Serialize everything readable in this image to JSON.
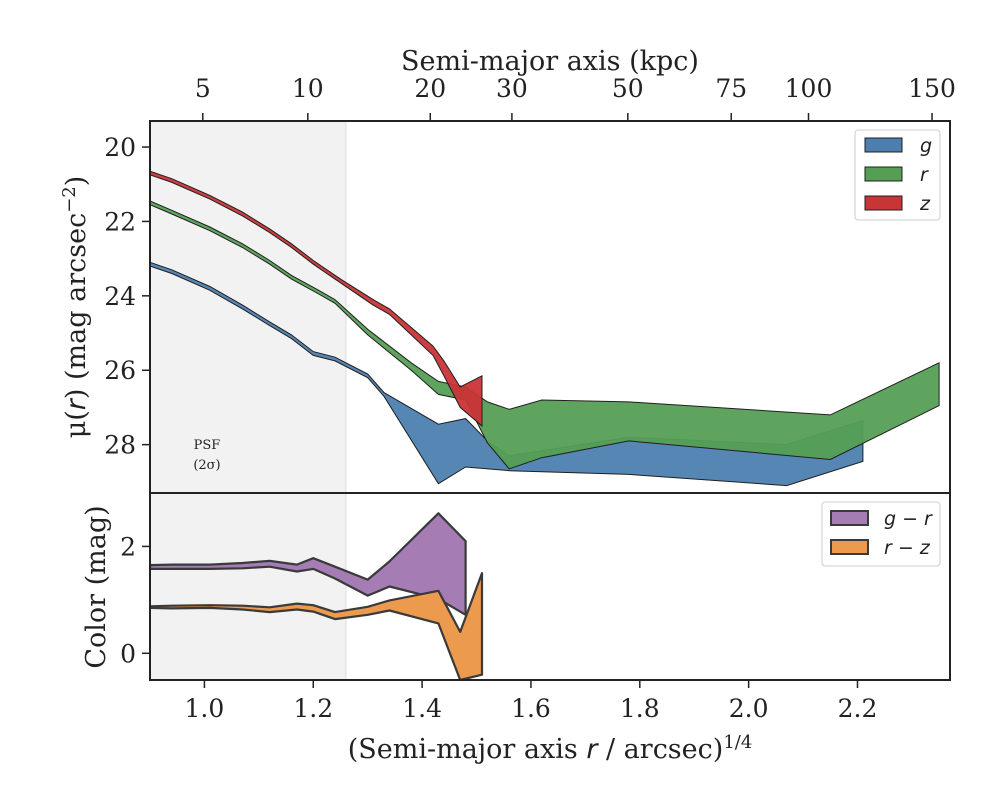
{
  "chart_data": [
    {
      "panel": "surface-brightness",
      "type": "area",
      "ylabel_parts": [
        "μ(",
        "r",
        ") (mag arcsec",
        "−2",
        ")"
      ],
      "top_xlabel": "Semi-major axis (kpc)",
      "top_ticks": [
        {
          "label": "5",
          "x": 0.997
        },
        {
          "label": "10",
          "x": 1.19
        },
        {
          "label": "20",
          "x": 1.415
        },
        {
          "label": "30",
          "x": 1.565
        },
        {
          "label": "50",
          "x": 1.778
        },
        {
          "label": "75",
          "x": 1.968
        },
        {
          "label": "100",
          "x": 2.11
        },
        {
          "label": "150",
          "x": 2.337
        }
      ],
      "xlim": [
        0.9,
        2.37
      ],
      "ylim": [
        29.3,
        19.3
      ],
      "y_inverted": true,
      "yticks": [
        20,
        22,
        24,
        26,
        28
      ],
      "psf_region": {
        "x_range": [
          0.9,
          1.26
        ],
        "label_line1": "PSF",
        "label_line2": "(2σ)"
      },
      "legend": {
        "position": "upper right",
        "entries": [
          "g",
          "r",
          "z"
        ]
      },
      "colors": {
        "g": "#4c7fb0",
        "r": "#559f55",
        "z": "#c93436"
      },
      "series": [
        {
          "name": "g",
          "upper": [
            [
              0.9,
              23.1
            ],
            [
              0.94,
              23.3
            ],
            [
              1.01,
              23.75
            ],
            [
              1.07,
              24.25
            ],
            [
              1.12,
              24.7
            ],
            [
              1.16,
              25.05
            ],
            [
              1.2,
              25.5
            ],
            [
              1.24,
              25.65
            ],
            [
              1.3,
              26.1
            ],
            [
              1.33,
              26.6
            ],
            [
              1.43,
              27.45
            ],
            [
              1.48,
              27.3
            ],
            [
              1.52,
              27.9
            ],
            [
              1.56,
              28.3
            ],
            [
              1.78,
              27.8
            ],
            [
              2.07,
              28.0
            ],
            [
              2.21,
              27.35
            ]
          ],
          "lower": [
            [
              0.9,
              23.2
            ],
            [
              0.94,
              23.4
            ],
            [
              1.01,
              23.85
            ],
            [
              1.07,
              24.35
            ],
            [
              1.12,
              24.8
            ],
            [
              1.16,
              25.15
            ],
            [
              1.2,
              25.6
            ],
            [
              1.24,
              25.75
            ],
            [
              1.3,
              26.2
            ],
            [
              1.33,
              26.7
            ],
            [
              1.43,
              29.05
            ],
            [
              1.48,
              28.6
            ],
            [
              1.56,
              28.7
            ],
            [
              1.78,
              28.8
            ],
            [
              2.07,
              29.1
            ],
            [
              2.21,
              28.45
            ]
          ]
        },
        {
          "name": "r",
          "upper": [
            [
              0.9,
              21.45
            ],
            [
              0.94,
              21.7
            ],
            [
              1.01,
              22.15
            ],
            [
              1.07,
              22.6
            ],
            [
              1.12,
              23.05
            ],
            [
              1.16,
              23.45
            ],
            [
              1.21,
              23.85
            ],
            [
              1.24,
              24.1
            ],
            [
              1.3,
              24.9
            ],
            [
              1.38,
              25.8
            ],
            [
              1.43,
              26.3
            ],
            [
              1.48,
              26.45
            ],
            [
              1.52,
              26.85
            ],
            [
              1.56,
              27.05
            ],
            [
              1.62,
              26.8
            ],
            [
              1.78,
              26.85
            ],
            [
              2.15,
              27.2
            ],
            [
              2.35,
              25.8
            ]
          ],
          "lower": [
            [
              0.9,
              21.55
            ],
            [
              0.94,
              21.8
            ],
            [
              1.01,
              22.25
            ],
            [
              1.07,
              22.7
            ],
            [
              1.12,
              23.15
            ],
            [
              1.16,
              23.55
            ],
            [
              1.21,
              23.95
            ],
            [
              1.24,
              24.2
            ],
            [
              1.3,
              25.05
            ],
            [
              1.38,
              26.0
            ],
            [
              1.43,
              26.65
            ],
            [
              1.48,
              26.8
            ],
            [
              1.52,
              27.95
            ],
            [
              1.56,
              28.65
            ],
            [
              1.62,
              28.35
            ],
            [
              1.78,
              27.9
            ],
            [
              2.15,
              28.4
            ],
            [
              2.35,
              26.95
            ]
          ]
        },
        {
          "name": "z",
          "upper": [
            [
              0.9,
              20.65
            ],
            [
              0.94,
              20.85
            ],
            [
              1.01,
              21.3
            ],
            [
              1.07,
              21.75
            ],
            [
              1.12,
              22.2
            ],
            [
              1.16,
              22.6
            ],
            [
              1.2,
              23.05
            ],
            [
              1.25,
              23.55
            ],
            [
              1.31,
              24.1
            ],
            [
              1.34,
              24.35
            ],
            [
              1.42,
              25.35
            ],
            [
              1.44,
              25.75
            ],
            [
              1.47,
              26.45
            ],
            [
              1.51,
              26.15
            ]
          ],
          "lower": [
            [
              0.9,
              20.75
            ],
            [
              0.94,
              20.95
            ],
            [
              1.01,
              21.4
            ],
            [
              1.07,
              21.85
            ],
            [
              1.12,
              22.3
            ],
            [
              1.16,
              22.7
            ],
            [
              1.2,
              23.15
            ],
            [
              1.25,
              23.65
            ],
            [
              1.31,
              24.25
            ],
            [
              1.34,
              24.5
            ],
            [
              1.42,
              25.6
            ],
            [
              1.44,
              26.15
            ],
            [
              1.47,
              27.0
            ],
            [
              1.51,
              27.5
            ]
          ]
        }
      ]
    },
    {
      "panel": "color",
      "type": "area",
      "xlabel_parts": [
        "(Semi-major axis ",
        "r",
        " / arcsec)",
        "1/4"
      ],
      "ylabel": "Color (mag)",
      "xlim": [
        0.9,
        2.37
      ],
      "ylim": [
        -0.5,
        3.0
      ],
      "xticks": [
        1.0,
        1.2,
        1.4,
        1.6,
        1.8,
        2.0,
        2.2
      ],
      "xtick_labels": [
        "1.0",
        "1.2",
        "1.4",
        "1.6",
        "1.8",
        "2.0",
        "2.2"
      ],
      "yticks": [
        0,
        2
      ],
      "ytick_labels": [
        "0",
        "2"
      ],
      "legend": {
        "position": "upper right",
        "entries": [
          "g − r",
          "r − z"
        ]
      },
      "colors": {
        "g − r": "#a57cb4",
        "r − z": "#ec9a4e"
      },
      "series": [
        {
          "name": "g − r",
          "upper": [
            [
              0.9,
              1.65
            ],
            [
              0.94,
              1.66
            ],
            [
              1.01,
              1.66
            ],
            [
              1.07,
              1.69
            ],
            [
              1.12,
              1.73
            ],
            [
              1.17,
              1.66
            ],
            [
              1.2,
              1.78
            ],
            [
              1.24,
              1.62
            ],
            [
              1.3,
              1.38
            ],
            [
              1.34,
              1.72
            ],
            [
              1.43,
              2.62
            ],
            [
              1.48,
              2.1
            ]
          ],
          "lower": [
            [
              0.9,
              1.58
            ],
            [
              0.94,
              1.58
            ],
            [
              1.01,
              1.58
            ],
            [
              1.07,
              1.59
            ],
            [
              1.12,
              1.62
            ],
            [
              1.17,
              1.53
            ],
            [
              1.2,
              1.58
            ],
            [
              1.24,
              1.4
            ],
            [
              1.3,
              1.08
            ],
            [
              1.34,
              1.25
            ],
            [
              1.43,
              1.02
            ],
            [
              1.48,
              0.72
            ]
          ]
        },
        {
          "name": "r − z",
          "upper": [
            [
              0.9,
              0.88
            ],
            [
              0.94,
              0.89
            ],
            [
              1.01,
              0.9
            ],
            [
              1.07,
              0.89
            ],
            [
              1.12,
              0.86
            ],
            [
              1.17,
              0.93
            ],
            [
              1.2,
              0.9
            ],
            [
              1.24,
              0.77
            ],
            [
              1.3,
              0.87
            ],
            [
              1.34,
              0.99
            ],
            [
              1.43,
              1.17
            ],
            [
              1.47,
              0.4
            ],
            [
              1.51,
              1.5
            ]
          ],
          "lower": [
            [
              0.9,
              0.85
            ],
            [
              0.94,
              0.84
            ],
            [
              1.01,
              0.85
            ],
            [
              1.07,
              0.82
            ],
            [
              1.12,
              0.77
            ],
            [
              1.17,
              0.82
            ],
            [
              1.2,
              0.78
            ],
            [
              1.24,
              0.64
            ],
            [
              1.3,
              0.72
            ],
            [
              1.34,
              0.8
            ],
            [
              1.43,
              0.56
            ],
            [
              1.47,
              -0.5
            ],
            [
              1.51,
              -0.4
            ]
          ]
        }
      ]
    }
  ]
}
